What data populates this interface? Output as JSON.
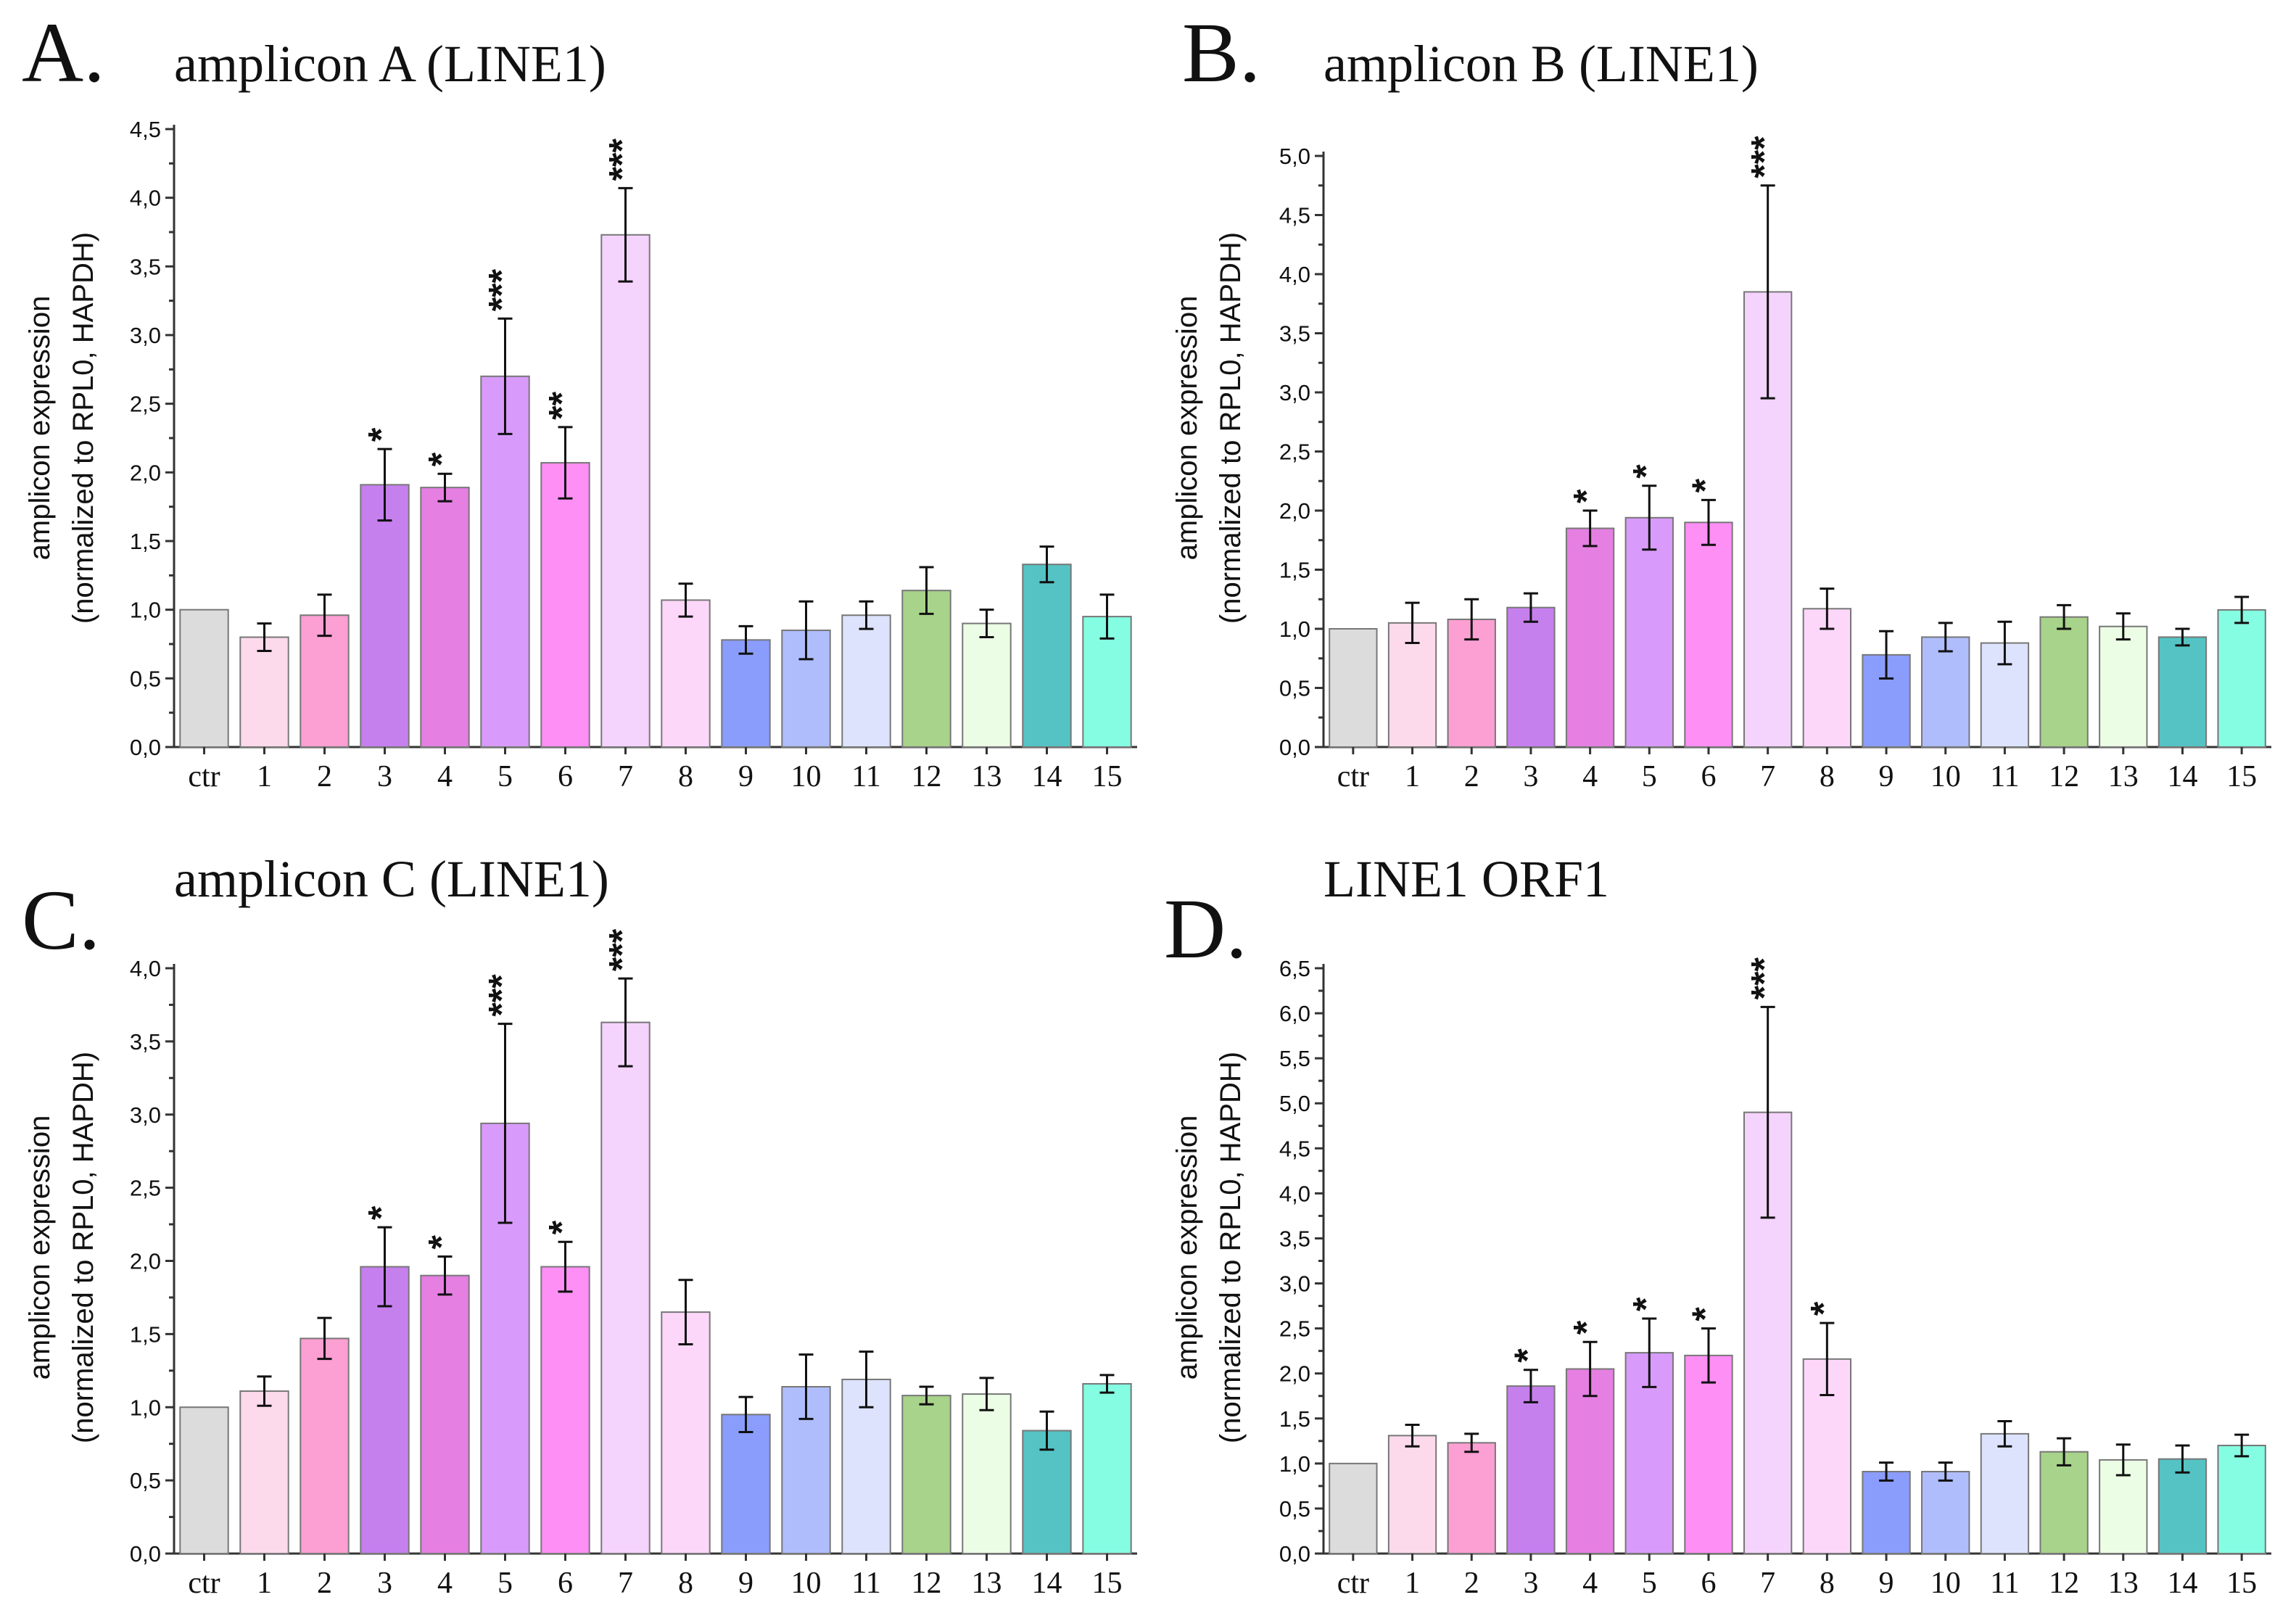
{
  "categories": [
    "ctr",
    "1",
    "2",
    "3",
    "4",
    "5",
    "6",
    "7",
    "8",
    "9",
    "10",
    "11",
    "12",
    "13",
    "14",
    "15"
  ],
  "bar_colors": [
    "#dcdcdc",
    "#fdd9ec",
    "#fc9fd3",
    "#c680ee",
    "#e57fe2",
    "#d89bfb",
    "#fd8ff5",
    "#f4d3fc",
    "#fdd7fa",
    "#8a9dfc",
    "#b0bdfd",
    "#dde3fd",
    "#a8d38a",
    "#ecfde5",
    "#55c3c3",
    "#85fde2"
  ],
  "chart_data": [
    {
      "type": "bar",
      "panel": "A.",
      "title": "amplicon A (LINE1)",
      "ylabel_line1": "amplicon expression",
      "ylabel_line2": "(normalized to RPL0, HAPDH)",
      "ylim": [
        0,
        4.5
      ],
      "ytick_step": 0.5,
      "yticks": [
        "0,0",
        "0,5",
        "1,0",
        "1,5",
        "2,0",
        "2,5",
        "3,0",
        "3,5",
        "4,0",
        "4,5"
      ],
      "categories": [
        "ctr",
        "1",
        "2",
        "3",
        "4",
        "5",
        "6",
        "7",
        "8",
        "9",
        "10",
        "11",
        "12",
        "13",
        "14",
        "15"
      ],
      "values": [
        1.0,
        0.8,
        0.96,
        1.91,
        1.89,
        2.7,
        2.07,
        3.73,
        1.07,
        0.78,
        0.85,
        0.96,
        1.14,
        0.9,
        1.33,
        0.95
      ],
      "errors": [
        0,
        0.1,
        0.15,
        0.26,
        0.1,
        0.42,
        0.26,
        0.34,
        0.12,
        0.1,
        0.21,
        0.1,
        0.17,
        0.1,
        0.13,
        0.16
      ],
      "significance": [
        "",
        "",
        "",
        "*",
        "*",
        "***",
        "**",
        "***",
        "",
        "",
        "",
        "",
        "",
        "",
        "",
        ""
      ]
    },
    {
      "type": "bar",
      "panel": "B.",
      "title": "amplicon B (LINE1)",
      "ylabel_line1": "amplicon expression",
      "ylabel_line2": "(normalized to RPL0, HAPDH)",
      "ylim": [
        0,
        5.0
      ],
      "ytick_step": 0.5,
      "yticks": [
        "0,0",
        "0,5",
        "1,0",
        "1,5",
        "2,0",
        "2,5",
        "3,0",
        "3,5",
        "4,0",
        "4,5",
        "5,0"
      ],
      "categories": [
        "ctr",
        "1",
        "2",
        "3",
        "4",
        "5",
        "6",
        "7",
        "8",
        "9",
        "10",
        "11",
        "12",
        "13",
        "14",
        "15"
      ],
      "values": [
        1.0,
        1.05,
        1.08,
        1.18,
        1.85,
        1.94,
        1.9,
        3.85,
        1.17,
        0.78,
        0.93,
        0.88,
        1.1,
        1.02,
        0.93,
        1.16
      ],
      "errors": [
        0,
        0.17,
        0.17,
        0.12,
        0.15,
        0.27,
        0.19,
        0.9,
        0.17,
        0.2,
        0.12,
        0.18,
        0.1,
        0.11,
        0.07,
        0.11
      ],
      "significance": [
        "",
        "",
        "",
        "",
        "*",
        "*",
        "*",
        "***",
        "",
        "",
        "",
        "",
        "",
        "",
        "",
        ""
      ]
    },
    {
      "type": "bar",
      "panel": "C.",
      "title": "amplicon C (LINE1)",
      "ylabel_line1": "amplicon expression",
      "ylabel_line2": "(normalized to RPL0, HAPDH)",
      "ylim": [
        0,
        4.0
      ],
      "ytick_step": 0.5,
      "yticks": [
        "0,0",
        "0,5",
        "1,0",
        "1,5",
        "2,0",
        "2,5",
        "3,0",
        "3,5",
        "4,0"
      ],
      "categories": [
        "ctr",
        "1",
        "2",
        "3",
        "4",
        "5",
        "6",
        "7",
        "8",
        "9",
        "10",
        "11",
        "12",
        "13",
        "14",
        "15"
      ],
      "values": [
        1.0,
        1.11,
        1.47,
        1.96,
        1.9,
        2.94,
        1.96,
        3.63,
        1.65,
        0.95,
        1.14,
        1.19,
        1.08,
        1.09,
        0.84,
        1.16
      ],
      "errors": [
        0,
        0.1,
        0.14,
        0.27,
        0.13,
        0.68,
        0.17,
        0.3,
        0.22,
        0.12,
        0.22,
        0.19,
        0.06,
        0.11,
        0.13,
        0.06
      ],
      "significance": [
        "",
        "",
        "",
        "*",
        "*",
        "***",
        "*",
        "***",
        "",
        "",
        "",
        "",
        "",
        "",
        "",
        ""
      ]
    },
    {
      "type": "bar",
      "panel": "D.",
      "title": "LINE1 ORF1",
      "ylabel_line1": "amplicon expression",
      "ylabel_line2": "(normalized to RPL0, HAPDH)",
      "ylim": [
        0,
        6.5
      ],
      "ytick_step": 0.5,
      "yticks": [
        "0,0",
        "0,5",
        "1,0",
        "1,5",
        "2,0",
        "2,5",
        "3,0",
        "3,5",
        "4,0",
        "4,5",
        "5,0",
        "5,5",
        "6,0",
        "6,5"
      ],
      "categories": [
        "ctr",
        "1",
        "2",
        "3",
        "4",
        "5",
        "6",
        "7",
        "8",
        "9",
        "10",
        "11",
        "12",
        "13",
        "14",
        "15"
      ],
      "values": [
        1.0,
        1.31,
        1.23,
        1.86,
        2.05,
        2.23,
        2.2,
        4.9,
        2.16,
        0.91,
        0.91,
        1.33,
        1.13,
        1.04,
        1.05,
        1.2
      ],
      "errors": [
        0,
        0.12,
        0.1,
        0.18,
        0.3,
        0.38,
        0.3,
        1.17,
        0.4,
        0.1,
        0.1,
        0.14,
        0.15,
        0.17,
        0.15,
        0.12
      ],
      "significance": [
        "",
        "",
        "",
        "*",
        "*",
        "*",
        "*",
        "***",
        "*",
        "",
        "",
        "",
        "",
        "",
        "",
        ""
      ]
    }
  ]
}
